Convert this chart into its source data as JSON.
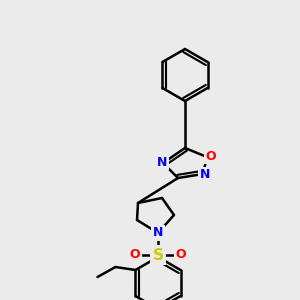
{
  "bg_color": "#ebebeb",
  "bond_color": "#000000",
  "atom_colors": {
    "N": "#0000ff",
    "O": "#ff0000",
    "S": "#cccc00",
    "C": "#000000"
  },
  "line_width": 1.8,
  "font_size": 9,
  "fig_size": [
    3.0,
    3.0
  ],
  "dpi": 100
}
